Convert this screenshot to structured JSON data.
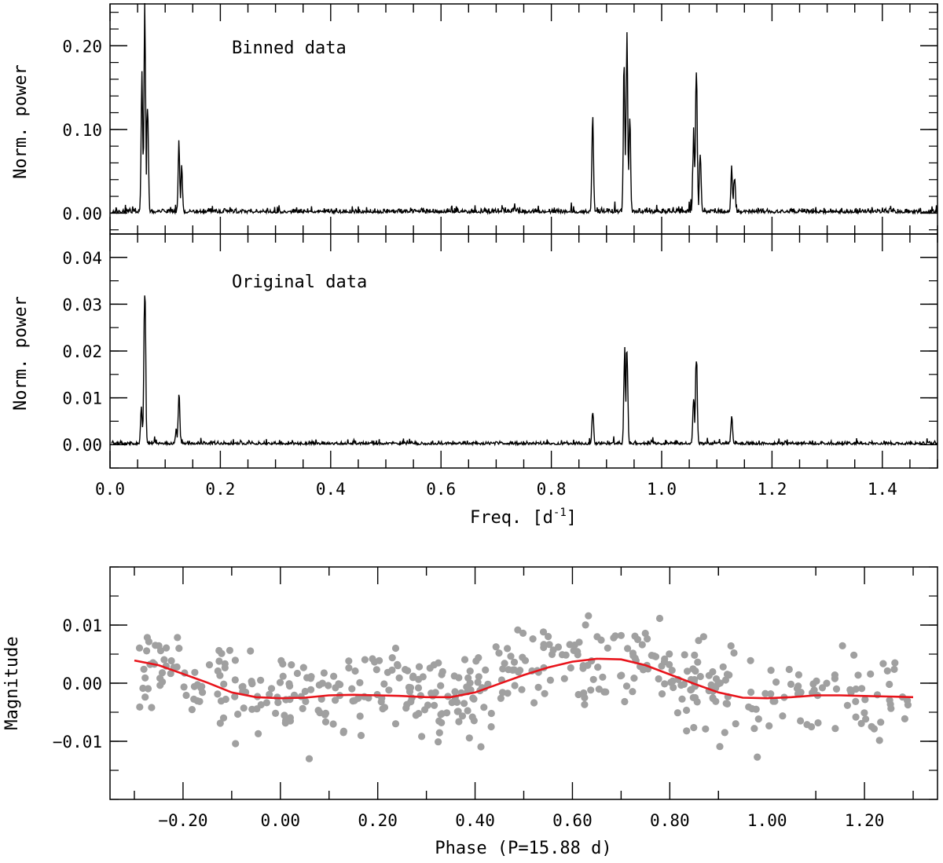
{
  "chart_data": [
    {
      "type": "line",
      "panel": "top",
      "annotation": "Binned data",
      "ylabel": "Norm. power",
      "xlabel": "",
      "xlim": [
        0.0,
        1.5
      ],
      "ylim": [
        -0.025,
        0.25
      ],
      "yticks": [
        0.0,
        0.1,
        0.2
      ],
      "ytick_labels": [
        "0.00",
        "0.10",
        "0.20"
      ],
      "peaks": [
        {
          "x": 0.063,
          "y": 0.232
        },
        {
          "x": 0.058,
          "y": 0.15
        },
        {
          "x": 0.068,
          "y": 0.125
        },
        {
          "x": 0.125,
          "y": 0.078
        },
        {
          "x": 0.13,
          "y": 0.052
        },
        {
          "x": 0.875,
          "y": 0.105
        },
        {
          "x": 0.937,
          "y": 0.195
        },
        {
          "x": 0.932,
          "y": 0.17
        },
        {
          "x": 0.942,
          "y": 0.12
        },
        {
          "x": 1.063,
          "y": 0.176
        },
        {
          "x": 1.058,
          "y": 0.1
        },
        {
          "x": 1.07,
          "y": 0.075
        },
        {
          "x": 1.127,
          "y": 0.052
        },
        {
          "x": 1.132,
          "y": 0.045
        }
      ]
    },
    {
      "type": "line",
      "panel": "middle",
      "annotation": "Original data",
      "ylabel": "Norm. power",
      "xlabel": "Freq. [d",
      "xlabel_sup": "-1",
      "xlabel_end": "]",
      "xlim": [
        0.0,
        1.5
      ],
      "ylim": [
        -0.005,
        0.045
      ],
      "yticks": [
        0.0,
        0.01,
        0.02,
        0.03,
        0.04
      ],
      "ytick_labels": [
        "0.00",
        "0.01",
        "0.02",
        "0.03",
        "0.04"
      ],
      "xticks": [
        0.0,
        0.2,
        0.4,
        0.6,
        0.8,
        1.0,
        1.2,
        1.4
      ],
      "xtick_labels": [
        "0.0",
        "0.2",
        "0.4",
        "0.6",
        "0.8",
        "1.0",
        "1.2",
        "1.4"
      ],
      "peaks": [
        {
          "x": 0.063,
          "y": 0.0365
        },
        {
          "x": 0.057,
          "y": 0.008
        },
        {
          "x": 0.125,
          "y": 0.01
        },
        {
          "x": 0.12,
          "y": 0.003
        },
        {
          "x": 0.875,
          "y": 0.007
        },
        {
          "x": 0.937,
          "y": 0.02
        },
        {
          "x": 0.933,
          "y": 0.0195
        },
        {
          "x": 1.063,
          "y": 0.0193
        },
        {
          "x": 1.058,
          "y": 0.0095
        },
        {
          "x": 1.127,
          "y": 0.0065
        }
      ]
    },
    {
      "type": "scatter",
      "panel": "bottom",
      "ylabel": "Magnitude",
      "xlabel": "Phase (P=15.88 d)",
      "xlim": [
        -0.35,
        1.35
      ],
      "ylim": [
        -0.02,
        0.02
      ],
      "xticks": [
        -0.2,
        0.0,
        0.2,
        0.4,
        0.6,
        0.8,
        1.0,
        1.2
      ],
      "xtick_labels": [
        "−0.20",
        "0.00",
        "0.20",
        "0.40",
        "0.60",
        "0.80",
        "1.00",
        "1.20"
      ],
      "yticks": [
        -0.01,
        0.0,
        0.01
      ],
      "ytick_labels": [
        "−0.01",
        "0.00",
        "0.01"
      ],
      "series": [
        {
          "color": "#a0a0a0",
          "marker": "circle"
        },
        {
          "color": "#e8141b",
          "style": "line",
          "x": [
            -0.3,
            -0.25,
            -0.2,
            -0.15,
            -0.1,
            -0.05,
            0.0,
            0.05,
            0.1,
            0.15,
            0.2,
            0.25,
            0.3,
            0.35,
            0.4,
            0.45,
            0.5,
            0.55,
            0.6,
            0.65,
            0.7,
            0.75,
            0.8,
            0.85,
            0.9,
            0.95,
            1.0,
            1.05,
            1.1,
            1.15,
            1.2,
            1.25,
            1.3
          ],
          "y": [
            0.0039,
            0.0031,
            0.0016,
            0.0001,
            -0.0016,
            -0.0024,
            -0.0026,
            -0.0025,
            -0.0021,
            -0.002,
            -0.0021,
            -0.0022,
            -0.0024,
            -0.0024,
            -0.0016,
            -0.0001,
            0.0014,
            0.0027,
            0.0037,
            0.0042,
            0.0041,
            0.0031,
            0.0015,
            -0.0001,
            -0.0016,
            -0.0025,
            -0.0026,
            -0.0024,
            -0.0021,
            -0.0021,
            -0.0022,
            -0.0023,
            -0.0024
          ]
        }
      ]
    }
  ],
  "colors": {
    "line": "#000000",
    "points": "#a0a0a0",
    "fit": "#e8141b"
  }
}
